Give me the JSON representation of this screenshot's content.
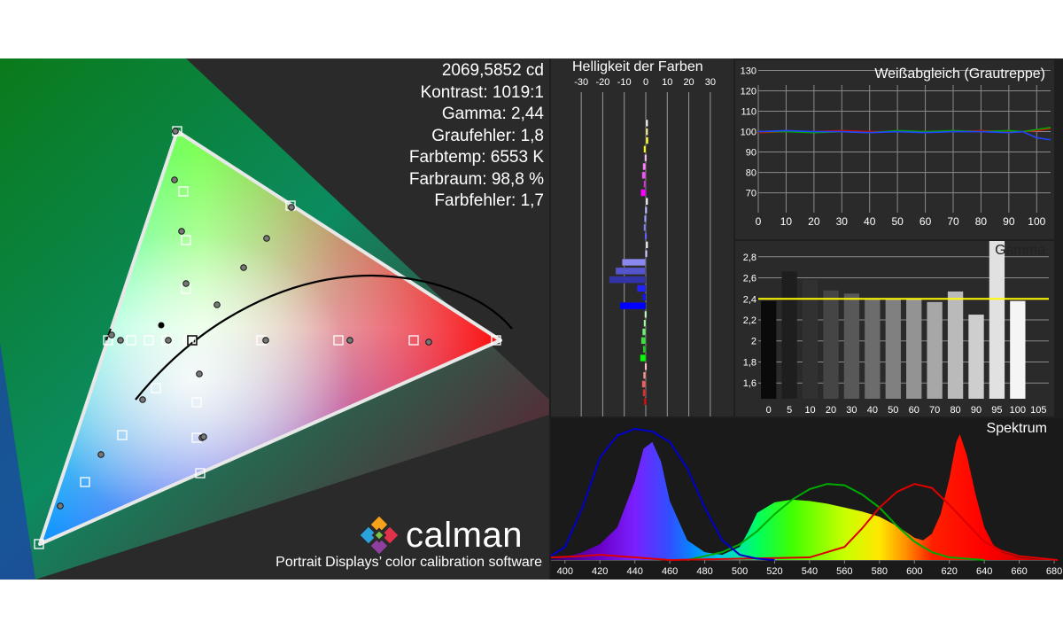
{
  "stats": [
    "2069,5852 cd",
    "Kontrast: 1019:1",
    "Gamma: 2,44",
    "Graufehler: 1,8",
    "Farbtemp: 6553 K",
    "Farbraum: 98,8 %",
    "Farbfehler: 1,7"
  ],
  "branding": {
    "logo_text": "calman",
    "tagline": "Portrait Displays’ color calibration software"
  },
  "colors": {
    "background": "#1e1e1e",
    "panel": "#2a2a2a",
    "gamma_target": "#ffff00",
    "spectrum_blue": "#0000cc",
    "spectrum_green": "#00aa00",
    "spectrum_red": "#dd0000"
  },
  "chart_data": [
    {
      "type": "scatter",
      "name_on_screen": "",
      "gamut_triangle": [
        [
          0.198,
          0.145
        ],
        [
          0.33,
          0.698
        ],
        [
          0.925,
          0.275
        ]
      ],
      "reference_points": [
        [
          0.205,
          0.117
        ],
        [
          0.305,
          0.7
        ],
        [
          0.92,
          0.275
        ],
        [
          0.31,
          0.378
        ],
        [
          0.35,
          0.42
        ],
        [
          0.47,
          0.33
        ],
        [
          0.345,
          0.37
        ]
      ],
      "measured_points": [
        [
          0.205,
          0.12
        ],
        [
          0.302,
          0.702
        ],
        [
          0.918,
          0.278
        ],
        [
          0.318,
          0.385
        ],
        [
          0.342,
          0.425
        ],
        [
          0.478,
          0.335
        ]
      ],
      "planckian_locus": true
    },
    {
      "type": "bar",
      "title": "Helligkeit der Farben",
      "x_ticks": [
        "-30",
        "-20",
        "-10",
        "0",
        "10",
        "20",
        "30"
      ],
      "xlim": [
        -35,
        35
      ],
      "values": [
        {
          "v": 0.5,
          "c": "#ffffff"
        },
        {
          "v": 0.8,
          "c": "#fff8a0"
        },
        {
          "v": 1.2,
          "c": "#ffff40"
        },
        {
          "v": -1.0,
          "c": "#ffff00"
        },
        {
          "v": -0.6,
          "c": "#ffc0ff"
        },
        {
          "v": -1.4,
          "c": "#ff80ff"
        },
        {
          "v": -1.8,
          "c": "#ee55ee"
        },
        {
          "v": -1.0,
          "c": "#dd33dd"
        },
        {
          "v": -2.3,
          "c": "#ff00ff"
        },
        {
          "v": 0.3,
          "c": "#ffffff"
        },
        {
          "v": -0.4,
          "c": "#c0c0ff"
        },
        {
          "v": -0.7,
          "c": "#a0a0ff"
        },
        {
          "v": -1.0,
          "c": "#8080ff"
        },
        {
          "v": -0.5,
          "c": "#6060ff"
        },
        {
          "v": 0.2,
          "c": "#ffffff"
        },
        {
          "v": -0.3,
          "c": "#cfcfff"
        },
        {
          "v": -11,
          "c": "#8888ee"
        },
        {
          "v": -14,
          "c": "#5555cc"
        },
        {
          "v": -17,
          "c": "#3333aa"
        },
        {
          "v": -4,
          "c": "#2222ff"
        },
        {
          "v": -1.5,
          "c": "#1111ff"
        },
        {
          "v": -12,
          "c": "#0000ff"
        },
        {
          "v": -0.6,
          "c": "#c0ffc0"
        },
        {
          "v": -1.0,
          "c": "#a0ffa0"
        },
        {
          "v": -1.6,
          "c": "#70ee70"
        },
        {
          "v": -2.2,
          "c": "#40dd40"
        },
        {
          "v": -1.3,
          "c": "#22cc22"
        },
        {
          "v": -2.6,
          "c": "#00ff00"
        },
        {
          "v": -0.5,
          "c": "#ffc0c0"
        },
        {
          "v": -1.2,
          "c": "#ff9090"
        },
        {
          "v": -1.8,
          "c": "#ee6060"
        },
        {
          "v": -1.4,
          "c": "#dd3030"
        },
        {
          "v": -0.8,
          "c": "#ff0000"
        }
      ]
    },
    {
      "type": "line",
      "title": "Weißabgleich (Grautreppe)",
      "x_ticks": [
        0,
        10,
        20,
        30,
        40,
        50,
        60,
        70,
        80,
        90,
        100
      ],
      "xlim": [
        0,
        105
      ],
      "y_ticks": [
        70,
        80,
        90,
        100,
        110,
        120,
        130
      ],
      "ylim": [
        62,
        135
      ],
      "series": [
        {
          "color": "#dd0000",
          "x": [
            0,
            10,
            20,
            30,
            40,
            50,
            60,
            70,
            80,
            90,
            95,
            100,
            105
          ],
          "values": [
            99.5,
            100,
            100,
            100.5,
            100,
            100,
            100,
            100,
            100.5,
            100,
            100,
            100.5,
            101.5
          ]
        },
        {
          "color": "#00aa00",
          "x": [
            0,
            10,
            20,
            30,
            40,
            50,
            60,
            70,
            80,
            90,
            95,
            100,
            105
          ],
          "values": [
            100,
            100,
            99.5,
            100,
            99.5,
            100.5,
            100,
            100.5,
            100,
            100.5,
            100,
            101,
            102
          ]
        },
        {
          "color": "#2244ff",
          "x": [
            0,
            10,
            20,
            30,
            40,
            50,
            60,
            70,
            80,
            90,
            95,
            100,
            105
          ],
          "values": [
            100,
            100.5,
            100,
            100,
            99.5,
            100,
            99.5,
            100,
            100,
            99.5,
            100,
            97,
            96
          ]
        }
      ]
    },
    {
      "type": "bar",
      "title": "Gamma",
      "categories": [
        "0",
        "5",
        "10",
        "20",
        "30",
        "40",
        "50",
        "60",
        "70",
        "80",
        "90",
        "95",
        "100",
        "105"
      ],
      "y_ticks": [
        "1,6",
        "1,8",
        "2",
        "2,2",
        "2,4",
        "2,6",
        "2,8"
      ],
      "ylim": [
        1.45,
        2.95
      ],
      "target": 2.4,
      "values": [
        2.38,
        2.66,
        2.58,
        2.48,
        2.45,
        2.4,
        2.4,
        2.4,
        2.37,
        2.47,
        2.25,
        3.0,
        2.38,
        null
      ]
    },
    {
      "type": "area",
      "title": "Spektrum",
      "x_ticks": [
        400,
        420,
        440,
        460,
        480,
        500,
        520,
        540,
        560,
        580,
        600,
        620,
        640,
        660,
        680
      ],
      "xlim": [
        392,
        682
      ],
      "measured": [
        [
          392,
          0.005
        ],
        [
          400,
          0.02
        ],
        [
          410,
          0.06
        ],
        [
          420,
          0.12
        ],
        [
          430,
          0.25
        ],
        [
          440,
          0.6
        ],
        [
          445,
          0.85
        ],
        [
          450,
          0.9
        ],
        [
          455,
          0.75
        ],
        [
          460,
          0.45
        ],
        [
          470,
          0.15
        ],
        [
          480,
          0.06
        ],
        [
          490,
          0.04
        ],
        [
          500,
          0.1
        ],
        [
          505,
          0.22
        ],
        [
          510,
          0.36
        ],
        [
          520,
          0.44
        ],
        [
          530,
          0.46
        ],
        [
          540,
          0.45
        ],
        [
          550,
          0.43
        ],
        [
          560,
          0.4
        ],
        [
          570,
          0.37
        ],
        [
          580,
          0.33
        ],
        [
          590,
          0.26
        ],
        [
          600,
          0.17
        ],
        [
          605,
          0.15
        ],
        [
          610,
          0.2
        ],
        [
          615,
          0.35
        ],
        [
          620,
          0.62
        ],
        [
          624,
          0.9
        ],
        [
          626,
          0.96
        ],
        [
          630,
          0.8
        ],
        [
          635,
          0.5
        ],
        [
          640,
          0.25
        ],
        [
          645,
          0.12
        ],
        [
          650,
          0.06
        ],
        [
          660,
          0.02
        ],
        [
          670,
          0.008
        ],
        [
          682,
          0.003
        ]
      ],
      "reference_blue": [
        [
          392,
          0.03
        ],
        [
          400,
          0.1
        ],
        [
          410,
          0.4
        ],
        [
          420,
          0.78
        ],
        [
          430,
          0.95
        ],
        [
          440,
          1.0
        ],
        [
          450,
          0.98
        ],
        [
          460,
          0.9
        ],
        [
          470,
          0.7
        ],
        [
          480,
          0.4
        ],
        [
          490,
          0.15
        ],
        [
          500,
          0.04
        ],
        [
          510,
          0.01
        ],
        [
          520,
          0.0
        ]
      ],
      "reference_green": [
        [
          470,
          0.0
        ],
        [
          480,
          0.03
        ],
        [
          490,
          0.06
        ],
        [
          500,
          0.12
        ],
        [
          510,
          0.22
        ],
        [
          520,
          0.35
        ],
        [
          530,
          0.46
        ],
        [
          540,
          0.54
        ],
        [
          550,
          0.58
        ],
        [
          560,
          0.57
        ],
        [
          570,
          0.5
        ],
        [
          580,
          0.4
        ],
        [
          590,
          0.26
        ],
        [
          600,
          0.14
        ],
        [
          610,
          0.06
        ],
        [
          620,
          0.02
        ],
        [
          640,
          0.0
        ]
      ],
      "reference_red": [
        [
          392,
          0.02
        ],
        [
          410,
          0.03
        ],
        [
          420,
          0.04
        ],
        [
          440,
          0.02
        ],
        [
          460,
          0.0
        ],
        [
          540,
          0.02
        ],
        [
          560,
          0.1
        ],
        [
          570,
          0.24
        ],
        [
          580,
          0.4
        ],
        [
          590,
          0.52
        ],
        [
          600,
          0.58
        ],
        [
          610,
          0.55
        ],
        [
          620,
          0.42
        ],
        [
          630,
          0.28
        ],
        [
          640,
          0.14
        ],
        [
          650,
          0.07
        ],
        [
          660,
          0.03
        ],
        [
          682,
          0.0
        ]
      ]
    }
  ]
}
